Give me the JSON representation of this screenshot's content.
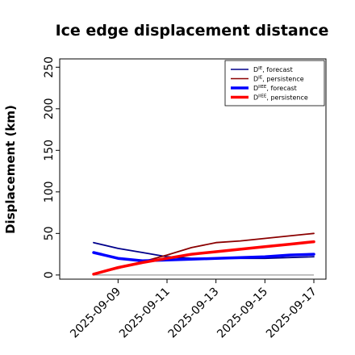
{
  "chart_data": {
    "type": "line",
    "title": "Ice edge displacement distance",
    "xlabel": "",
    "ylabel": "Displacement (km)",
    "x": [
      "2025-09-08",
      "2025-09-09",
      "2025-09-10",
      "2025-09-11",
      "2025-09-12",
      "2025-09-13",
      "2025-09-14",
      "2025-09-15",
      "2025-09-16",
      "2025-09-17"
    ],
    "xticks": [
      "2025-09-09",
      "2025-09-11",
      "2025-09-13",
      "2025-09-15",
      "2025-09-17"
    ],
    "highlight_tick": "2025-09-09",
    "highlight_color": "#2ca02c",
    "ylim": [
      -5,
      260
    ],
    "yticks": [
      0,
      50,
      100,
      150,
      200,
      250
    ],
    "grid": false,
    "legend_position": "upper right",
    "series": [
      {
        "name": "D^IE, forecast",
        "label_main": "D",
        "label_sup": "IE",
        "label_rest": ", forecast",
        "color": "#00008b",
        "width": "thin",
        "values": [
          39,
          32,
          27,
          22,
          20,
          20,
          20,
          20,
          21,
          22
        ]
      },
      {
        "name": "D^IE, persistence",
        "label_main": "D",
        "label_sup": "IE",
        "label_rest": ", persistence",
        "color": "#8b0000",
        "width": "thin",
        "values": [
          1,
          8,
          16,
          24,
          33,
          39,
          41,
          44,
          47,
          50
        ]
      },
      {
        "name": "D^IIEE, forecast",
        "label_main": "D",
        "label_sup": "IIEE",
        "label_rest": ", forecast",
        "color": "#0000ff",
        "width": "thick",
        "values": [
          27,
          20,
          17,
          18,
          19,
          20,
          21,
          22,
          24,
          25
        ]
      },
      {
        "name": "D^IIEE, persistence",
        "label_main": "D",
        "label_sup": "IIEE",
        "label_rest": ", persistence",
        "color": "#ff0000",
        "width": "thick",
        "values": [
          1,
          9,
          15,
          20,
          25,
          28,
          31,
          34,
          37,
          40
        ]
      }
    ],
    "reference_line": {
      "value": 0,
      "color": "#808080"
    }
  }
}
